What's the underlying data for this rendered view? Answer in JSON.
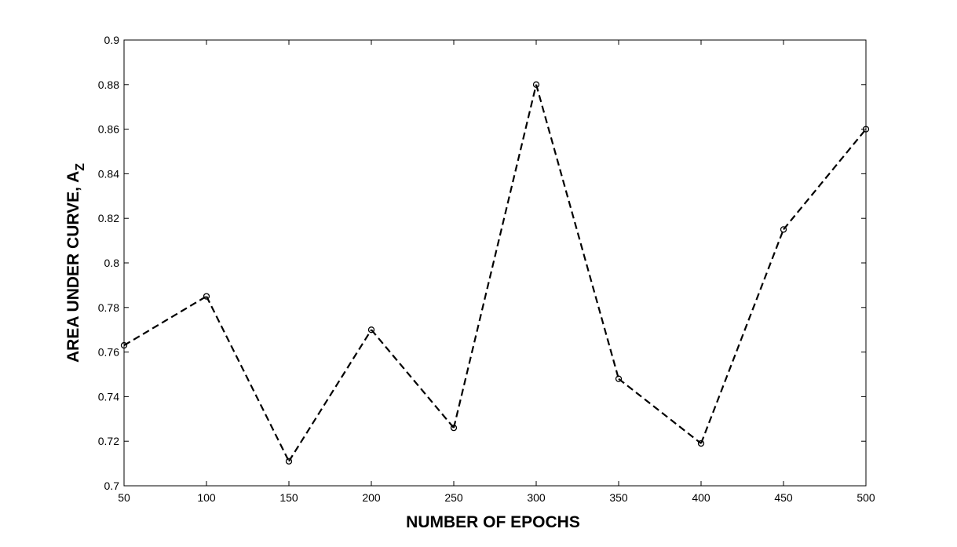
{
  "chart_data": {
    "type": "line",
    "title": "",
    "xlabel": "NUMBER OF EPOCHS",
    "ylabel": {
      "main": "AREA UNDER CURVE, A",
      "subscript": "Z"
    },
    "x": [
      50,
      100,
      150,
      200,
      250,
      300,
      350,
      400,
      450,
      500
    ],
    "series": [
      {
        "values": [
          0.763,
          0.785,
          0.711,
          0.77,
          0.726,
          0.88,
          0.748,
          0.719,
          0.815,
          0.86
        ]
      }
    ],
    "xlim": [
      50,
      500
    ],
    "ylim": [
      0.7,
      0.9
    ],
    "xticks": [
      "50",
      "100",
      "150",
      "200",
      "250",
      "300",
      "350",
      "400",
      "450",
      "500"
    ],
    "yticks": [
      "0.7",
      "0.72",
      "0.74",
      "0.76",
      "0.78",
      "0.8",
      "0.82",
      "0.84",
      "0.86",
      "0.88",
      "0.9"
    ],
    "grid": false,
    "line_style": "dashed",
    "marker": "circle",
    "color": "#000000"
  }
}
